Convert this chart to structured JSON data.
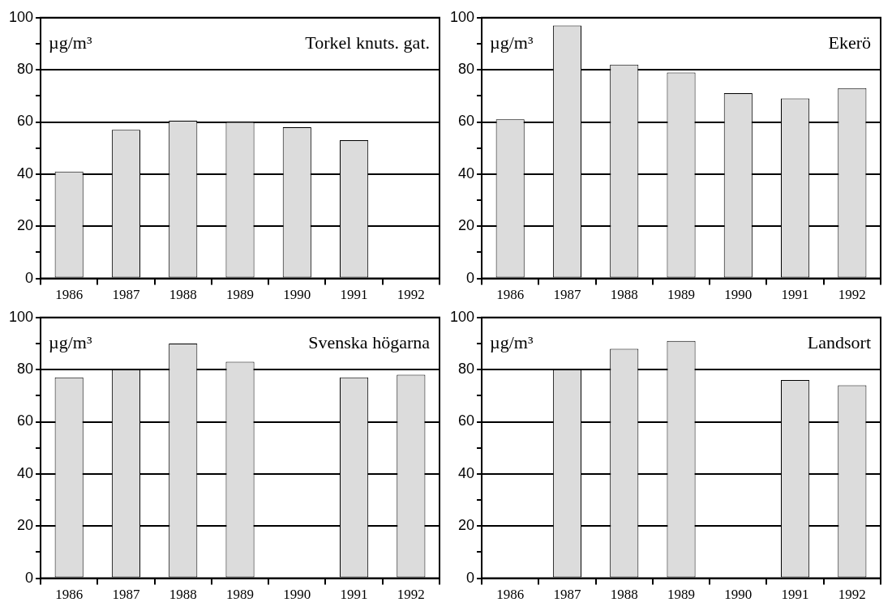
{
  "chart_data": [
    {
      "type": "bar",
      "title": "Torkel knuts. gat.",
      "ylabel": "µg/m³",
      "categories": [
        "1986",
        "1987",
        "1988",
        "1989",
        "1990",
        "1991",
        "1992"
      ],
      "values": [
        41,
        57,
        60.5,
        60,
        58,
        53,
        null
      ],
      "color": "#dcdcdc",
      "ylim": [
        0,
        100
      ],
      "yticks": [
        0,
        {
          "value": 10,
          "label": null
        },
        20,
        {
          "value": 30,
          "label": null
        },
        40,
        {
          "value": 50,
          "label": null
        },
        60,
        {
          "value": 70,
          "label": null
        },
        80,
        {
          "value": 90,
          "label": null
        },
        100
      ],
      "grid": "y"
    },
    {
      "type": "bar",
      "title": "Ekerö",
      "ylabel": "µg/m³",
      "categories": [
        "1986",
        "1987",
        "1988",
        "1989",
        "1990",
        "1991",
        "1992"
      ],
      "values": [
        61,
        97,
        82,
        79,
        71,
        69,
        73
      ],
      "color": "#dcdcdc",
      "ylim": [
        0,
        100
      ],
      "yticks": [
        0,
        {
          "value": 10,
          "label": null
        },
        20,
        {
          "value": 30,
          "label": null
        },
        40,
        {
          "value": 50,
          "label": null
        },
        60,
        {
          "value": 70,
          "label": null
        },
        80,
        {
          "value": 90,
          "label": null
        },
        100
      ],
      "grid": "y"
    },
    {
      "type": "bar",
      "title": "Svenska högarna",
      "ylabel": "µg/m³",
      "categories": [
        "1986",
        "1987",
        "1988",
        "1989",
        "1990",
        "1991",
        "1992"
      ],
      "values": [
        77,
        80,
        90,
        83,
        null,
        77,
        78
      ],
      "color": "#dcdcdc",
      "ylim": [
        0,
        100
      ],
      "yticks": [
        0,
        {
          "value": 10,
          "label": null
        },
        20,
        {
          "value": 30,
          "label": null
        },
        40,
        {
          "value": 50,
          "label": null
        },
        60,
        {
          "value": 70,
          "label": null
        },
        80,
        {
          "value": 90,
          "label": null
        },
        100
      ],
      "grid": "y"
    },
    {
      "type": "bar",
      "title": "Landsort",
      "ylabel": "µg/m³",
      "categories": [
        "1986",
        "1987",
        "1988",
        "1989",
        "1990",
        "1991",
        "1992"
      ],
      "values": [
        null,
        80,
        88,
        91,
        null,
        76,
        74
      ],
      "color": "#dcdcdc",
      "ylim": [
        0,
        100
      ],
      "yticks": [
        0,
        {
          "value": 10,
          "label": null
        },
        20,
        {
          "value": 30,
          "label": null
        },
        40,
        {
          "value": 50,
          "label": null
        },
        60,
        {
          "value": 70,
          "label": null
        },
        80,
        {
          "value": 90,
          "label": null
        },
        100
      ],
      "grid": "y"
    }
  ]
}
